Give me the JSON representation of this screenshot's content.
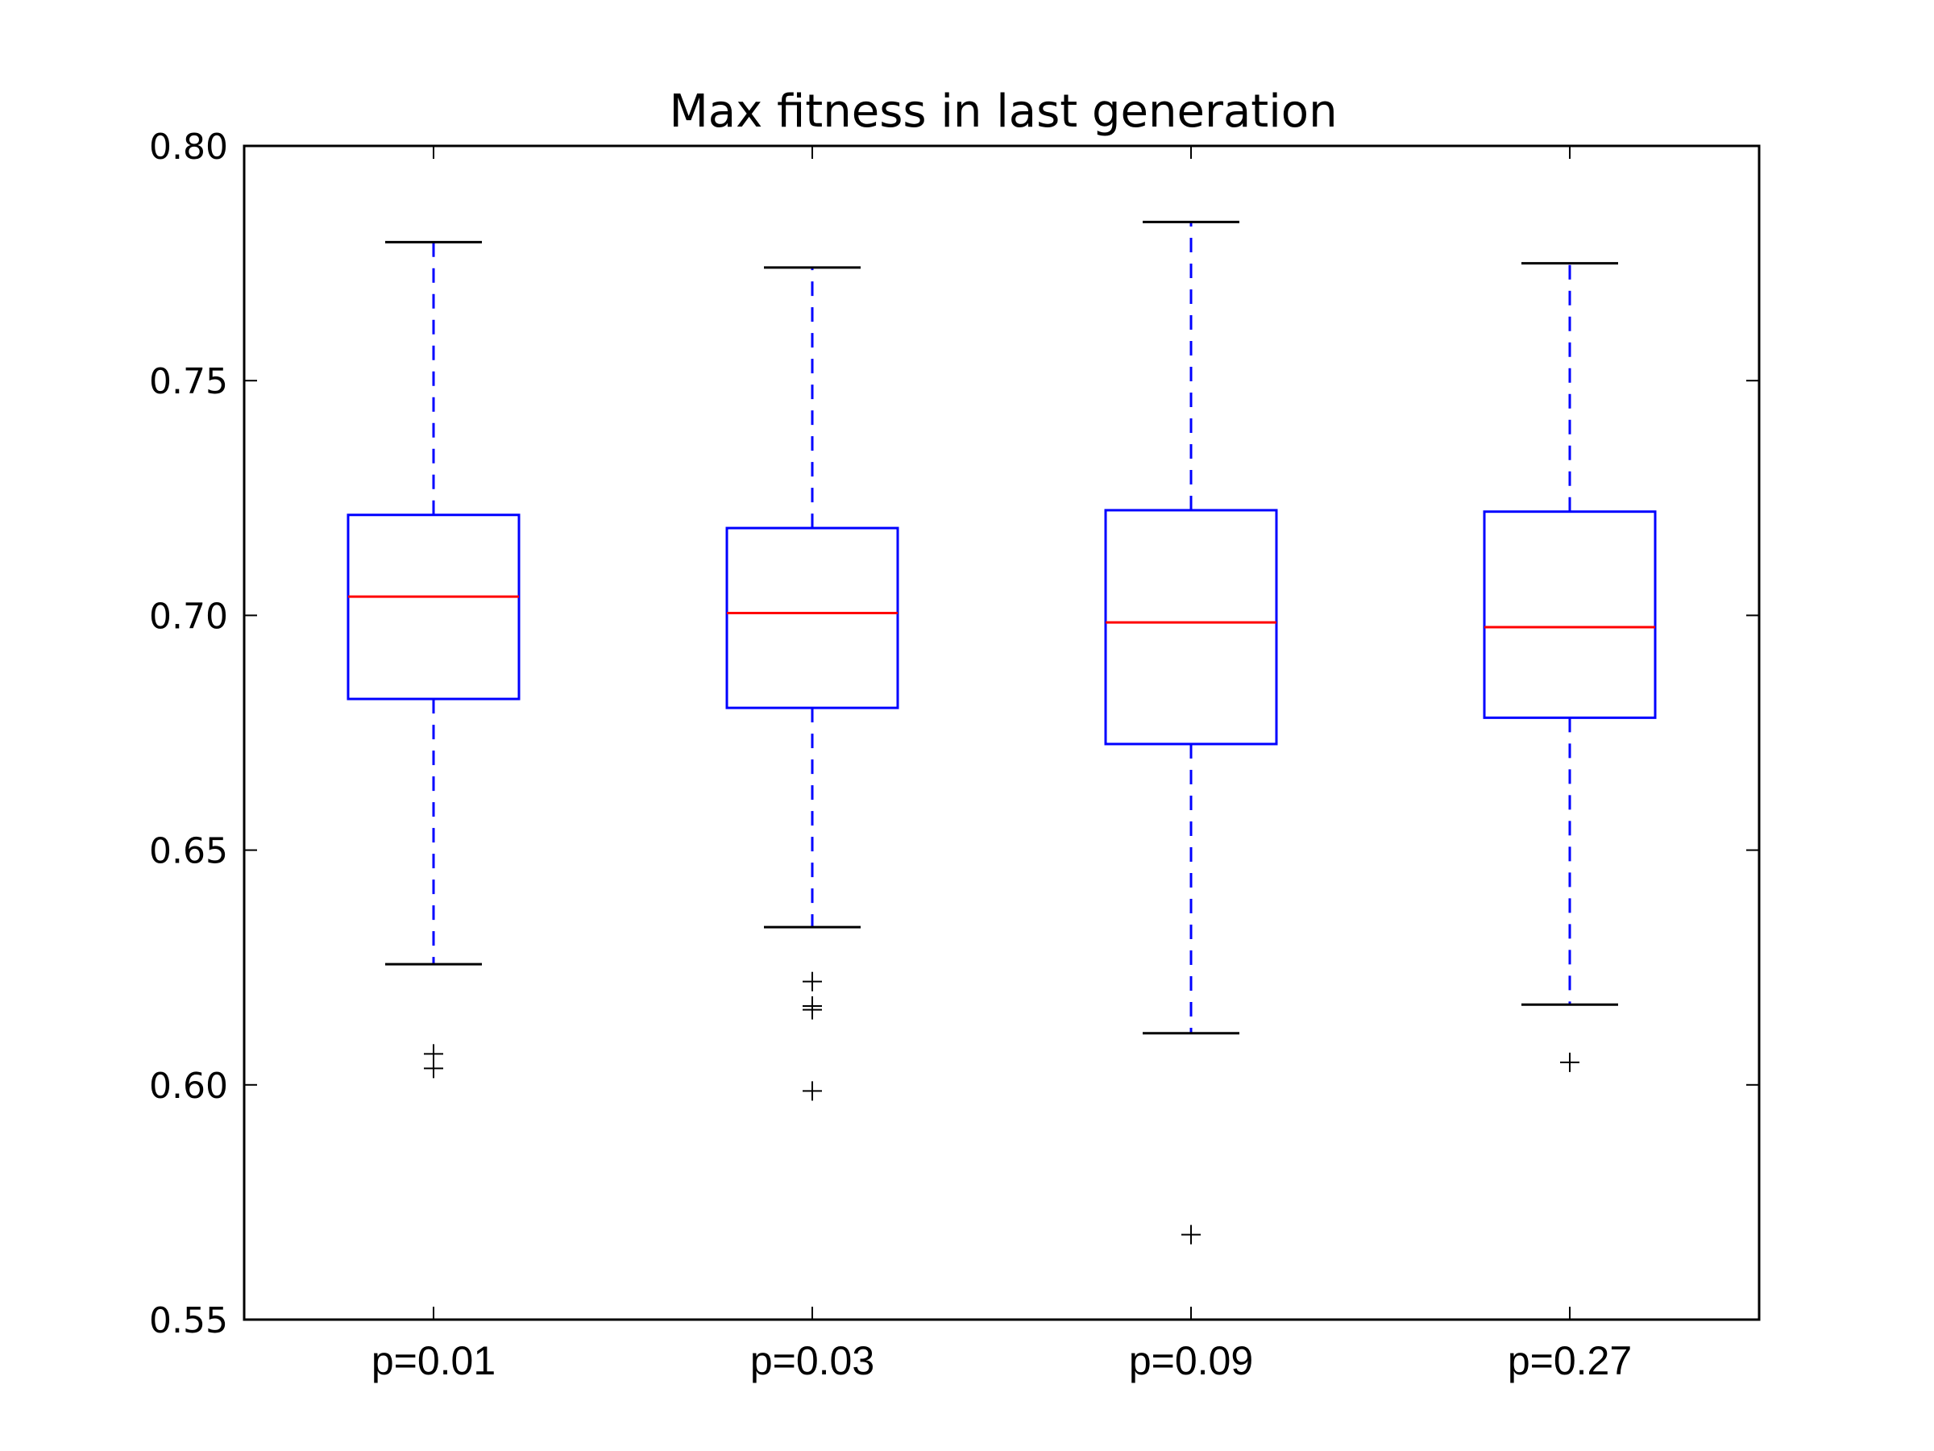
{
  "chart_data": {
    "type": "box",
    "title": "Max fitness in last generation",
    "xlabel": "",
    "ylabel": "",
    "ylim": [
      0.55,
      0.8
    ],
    "yticks": [
      0.55,
      0.6,
      0.65,
      0.7,
      0.75,
      0.8
    ],
    "ytick_labels": [
      "0.55",
      "0.60",
      "0.65",
      "0.70",
      "0.75",
      "0.80"
    ],
    "categories": [
      "p=0.01",
      "p=0.03",
      "p=0.09",
      "p=0.27"
    ],
    "boxes": [
      {
        "whisker_low": 0.6257,
        "q1": 0.6822,
        "median": 0.704,
        "q3": 0.7214,
        "whisker_high": 0.7795,
        "outliers": [
          0.6066,
          0.6035
        ]
      },
      {
        "whisker_low": 0.6336,
        "q1": 0.6803,
        "median": 0.7005,
        "q3": 0.7186,
        "whisker_high": 0.7741,
        "outliers": [
          0.622,
          0.6168,
          0.616,
          0.5987
        ]
      },
      {
        "whisker_low": 0.611,
        "q1": 0.6726,
        "median": 0.6985,
        "q3": 0.7224,
        "whisker_high": 0.7838,
        "outliers": [
          0.5681
        ]
      },
      {
        "whisker_low": 0.6171,
        "q1": 0.6782,
        "median": 0.6975,
        "q3": 0.7221,
        "whisker_high": 0.775,
        "outliers": [
          0.6048
        ]
      }
    ],
    "grid": false,
    "colors": {
      "box": "#0000ff",
      "median": "#ff0000",
      "whisker": "#0000ff",
      "cap": "#000000",
      "outlier": "#000000",
      "axes": "#000000"
    }
  }
}
